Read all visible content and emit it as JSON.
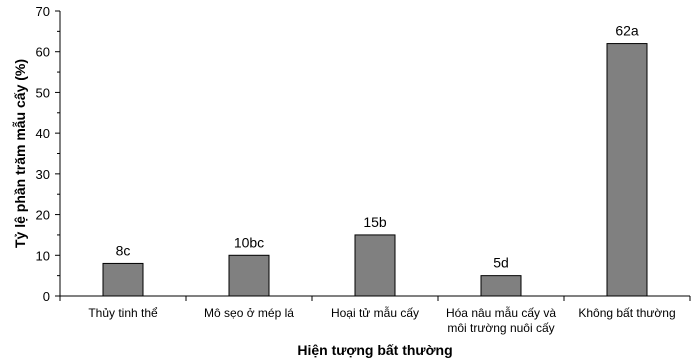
{
  "chart_data": {
    "type": "bar",
    "categories": [
      [
        "Thủy tinh thể"
      ],
      [
        "Mô sẹo ở mép lá"
      ],
      [
        "Hoại tử mẫu cấy"
      ],
      [
        "Hóa nâu mẫu cấy và",
        "môi trường nuôi cấy"
      ],
      [
        "Không bất thường"
      ]
    ],
    "values": [
      8,
      10,
      15,
      5,
      62
    ],
    "data_labels": [
      "8c",
      "10bc",
      "15b",
      "5d",
      "62a"
    ],
    "xlabel": "Hiện tượng bất thường",
    "ylabel": "Tỷ lệ phần trăm mẫu cấy (%)",
    "ylim": [
      0,
      70
    ],
    "yticks": [
      0,
      10,
      20,
      30,
      40,
      50,
      60,
      70
    ],
    "bar_color": "#808080",
    "grid": false,
    "legend": "none"
  }
}
